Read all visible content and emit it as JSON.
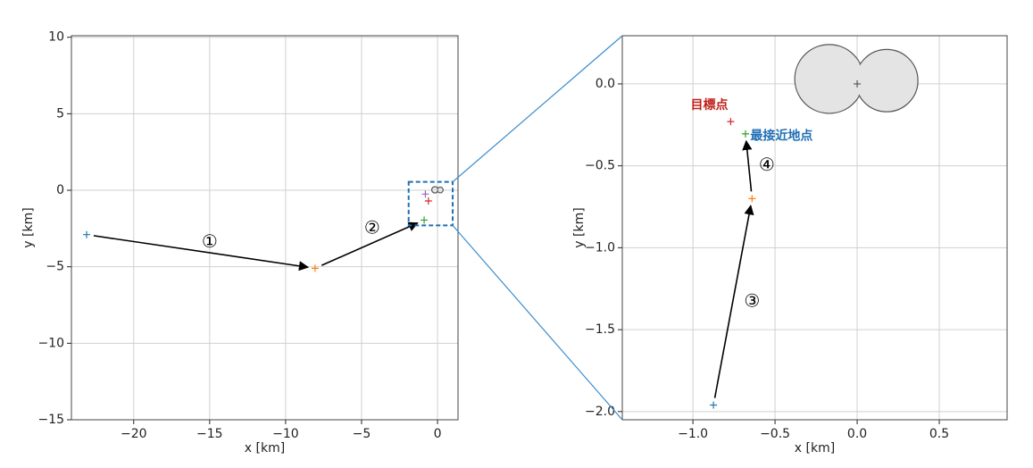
{
  "chart_data": [
    {
      "type": "scatter",
      "xlabel": "x [km]",
      "ylabel": "y [km]",
      "xlim": [
        -24.1,
        1.35
      ],
      "ylim": [
        -15,
        10.1
      ],
      "xticks": [
        {
          "value": -20,
          "label": "−20"
        },
        {
          "value": -15,
          "label": "−15"
        },
        {
          "value": -10,
          "label": "−10"
        },
        {
          "value": -5,
          "label": "−5"
        },
        0
      ],
      "yticks": [
        {
          "value": -15,
          "label": "−15"
        },
        {
          "value": -10,
          "label": "−10"
        },
        {
          "value": -5,
          "label": "−5"
        },
        0,
        5,
        10
      ],
      "grid": true,
      "points": [
        {
          "x": -23.1,
          "y": -2.9,
          "color": "#1f77b4"
        },
        {
          "x": -8.06,
          "y": -5.1,
          "color": "#ff7f0e"
        },
        {
          "x": -0.88,
          "y": -1.95,
          "color": "#2ca02c"
        },
        {
          "x": -0.6,
          "y": -0.7,
          "color": "#d62728"
        },
        {
          "x": -0.8,
          "y": -0.25,
          "color": "#9467bd"
        }
      ],
      "annotations": [
        {
          "text": "①",
          "color": "#000000"
        },
        {
          "text": "②",
          "color": "#000000"
        }
      ]
    },
    {
      "type": "scatter",
      "xlabel": "x [km]",
      "ylabel": "y [km]",
      "xlim": [
        -1.43,
        0.913
      ],
      "ylim": [
        -2.05,
        0.294
      ],
      "xticks": [
        {
          "value": -1.0,
          "label": "−1.0"
        },
        {
          "value": -0.5,
          "label": "−0.5"
        },
        {
          "value": 0.0,
          "label": "0.0"
        },
        0.5
      ],
      "yticks": [
        {
          "value": -2.0,
          "label": "−2.0"
        },
        {
          "value": -1.5,
          "label": "−1.5"
        },
        {
          "value": -1.0,
          "label": "−1.0"
        },
        {
          "value": -0.5,
          "label": "−0.5"
        },
        {
          "value": 0.0,
          "label": "0.0"
        }
      ],
      "grid": true,
      "points": [
        {
          "x": -0.875,
          "y": -1.96,
          "color": "#1f77b4"
        },
        {
          "x": -0.64,
          "y": -0.7,
          "color": "#ff7f0e"
        },
        {
          "x": -0.68,
          "y": -0.305,
          "color": "#2ca02c"
        },
        {
          "x": -0.77,
          "y": -0.23,
          "color": "#d62728"
        },
        {
          "x": 0,
          "y": 0,
          "color": "#555555"
        }
      ],
      "annotations": [
        {
          "text": "③",
          "color": "#000000"
        },
        {
          "text": "④",
          "color": "#000000"
        },
        {
          "text": "目標点",
          "color": "#c0201a"
        },
        {
          "text": "最接近地点",
          "color": "#1f6fb4"
        }
      ]
    }
  ]
}
